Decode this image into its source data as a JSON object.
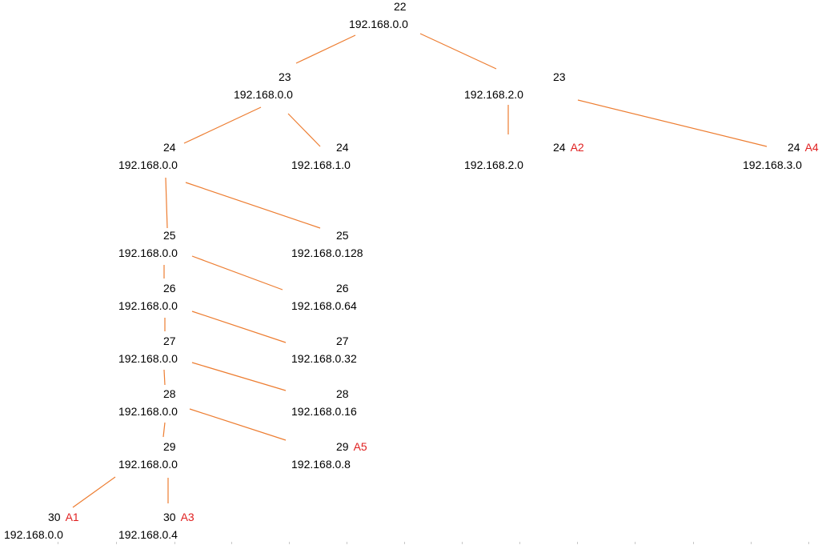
{
  "diagram": {
    "line_color": "#ED7D31",
    "tag_color": "#E02020",
    "nodes": [
      {
        "id": "n22",
        "prefix": "22",
        "address": "192.168.0.0",
        "tag": ""
      },
      {
        "id": "n23a",
        "prefix": "23",
        "address": "192.168.0.0",
        "tag": ""
      },
      {
        "id": "n23b",
        "prefix": "23",
        "address": "192.168.2.0",
        "tag": ""
      },
      {
        "id": "n24a",
        "prefix": "24",
        "address": "192.168.0.0",
        "tag": ""
      },
      {
        "id": "n24b",
        "prefix": "24",
        "address": "192.168.1.0",
        "tag": ""
      },
      {
        "id": "n24c",
        "prefix": "24",
        "address": "192.168.2.0",
        "tag": "A2"
      },
      {
        "id": "n24d",
        "prefix": "24",
        "address": "192.168.3.0",
        "tag": "A4"
      },
      {
        "id": "n25a",
        "prefix": "25",
        "address": "192.168.0.0",
        "tag": ""
      },
      {
        "id": "n25b",
        "prefix": "25",
        "address": "192.168.0.128",
        "tag": ""
      },
      {
        "id": "n26a",
        "prefix": "26",
        "address": "192.168.0.0",
        "tag": ""
      },
      {
        "id": "n26b",
        "prefix": "26",
        "address": "192.168.0.64",
        "tag": ""
      },
      {
        "id": "n27a",
        "prefix": "27",
        "address": "192.168.0.0",
        "tag": ""
      },
      {
        "id": "n27b",
        "prefix": "27",
        "address": "192.168.0.32",
        "tag": ""
      },
      {
        "id": "n28a",
        "prefix": "28",
        "address": "192.168.0.0",
        "tag": ""
      },
      {
        "id": "n28b",
        "prefix": "28",
        "address": "192.168.0.16",
        "tag": ""
      },
      {
        "id": "n29a",
        "prefix": "29",
        "address": "192.168.0.0",
        "tag": ""
      },
      {
        "id": "n29b",
        "prefix": "29",
        "address": "192.168.0.8",
        "tag": "A5"
      },
      {
        "id": "n30a",
        "prefix": "30",
        "address": "192.168.0.0",
        "tag": "A1"
      },
      {
        "id": "n30b",
        "prefix": "30",
        "address": "192.168.0.4",
        "tag": "A3"
      }
    ],
    "edges": [
      [
        "n22",
        "n23a"
      ],
      [
        "n22",
        "n23b"
      ],
      [
        "n23a",
        "n24a"
      ],
      [
        "n23a",
        "n24b"
      ],
      [
        "n23b",
        "n24c"
      ],
      [
        "n23b",
        "n24d"
      ],
      [
        "n24a",
        "n25a"
      ],
      [
        "n24a",
        "n25b"
      ],
      [
        "n25a",
        "n26a"
      ],
      [
        "n25a",
        "n26b"
      ],
      [
        "n26a",
        "n27a"
      ],
      [
        "n26a",
        "n27b"
      ],
      [
        "n27a",
        "n28a"
      ],
      [
        "n27a",
        "n28b"
      ],
      [
        "n28a",
        "n29a"
      ],
      [
        "n28a",
        "n29b"
      ],
      [
        "n29a",
        "n30a"
      ],
      [
        "n29a",
        "n30b"
      ]
    ]
  }
}
